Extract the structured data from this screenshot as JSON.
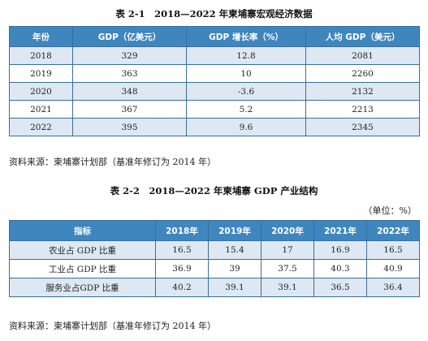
{
  "table1": {
    "caption": "表 2-1　2018—2022 年柬埔寨宏观经济数据",
    "headers": [
      "年份",
      "GDP（亿美元）",
      "GDP 增长率（%）",
      "人均 GDP（美元）"
    ],
    "rows": [
      [
        "2018",
        "329",
        "12.8",
        "2081"
      ],
      [
        "2019",
        "363",
        "10",
        "2260"
      ],
      [
        "2020",
        "348",
        "-3.6",
        "2132"
      ],
      [
        "2021",
        "367",
        "5.2",
        "2213"
      ],
      [
        "2022",
        "395",
        "9.6",
        "2345"
      ]
    ],
    "source": "资料来源：柬埔寨计划部（基准年修订为 2014 年）"
  },
  "table2": {
    "caption": "表 2-2　2018—2022 年柬埔寨 GDP 产业结构",
    "unit": "（单位：%）",
    "headers": [
      "指标",
      "2018年",
      "2019年",
      "2020年",
      "2021年",
      "2022年"
    ],
    "rows": [
      [
        "农业占 GDP 比重",
        "16.5",
        "15.4",
        "17",
        "16.9",
        "16.5"
      ],
      [
        "工业占 GDP 比重",
        "36.9",
        "39",
        "37.5",
        "40.3",
        "40.9"
      ],
      [
        "服务业占GDP 比重",
        "40.2",
        "39.1",
        "39.1",
        "36.5",
        "36.4"
      ]
    ],
    "source": "资料来源：柬埔寨计划部（基准年修订为 2014 年）"
  },
  "colors": {
    "header_bg": "#3f86be",
    "header_text": "#ffffff",
    "stripe": "#dde8f3",
    "border": "#3a6e9b"
  }
}
